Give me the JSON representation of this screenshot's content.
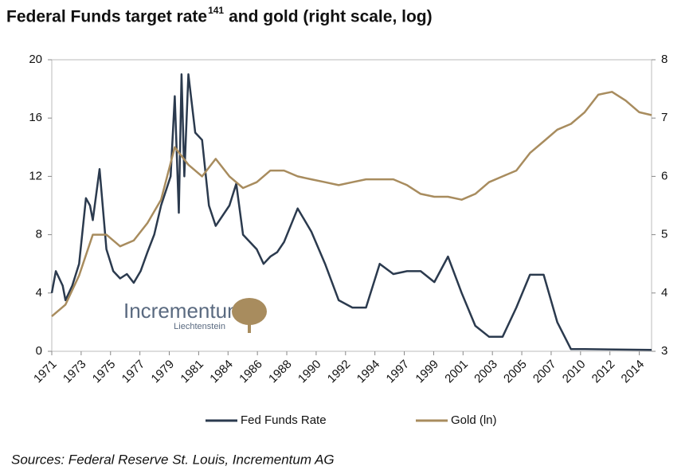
{
  "chart_data": {
    "type": "line",
    "title": "Federal Funds target rate",
    "title_superscript": "141",
    "title_suffix": "and gold (right scale, log)",
    "source": "Sources: Federal Reserve St. Louis, Incrementum AG",
    "logo": {
      "name": "Incrementum",
      "subtitle": "Liechtenstein"
    },
    "xlim": [
      1971,
      2014.9
    ],
    "xticks": [
      1971,
      {
        "value": 1973.15,
        "label": "1973"
      },
      {
        "value": 1975.3,
        "label": "1975"
      },
      {
        "value": 1977.45,
        "label": "1977"
      },
      {
        "value": 1979.6,
        "label": "1979"
      },
      {
        "value": 1981.75,
        "label": "1981"
      },
      {
        "value": 1983.9,
        "label": "1984"
      },
      {
        "value": 1986.05,
        "label": "1986"
      },
      {
        "value": 1988.2,
        "label": "1988"
      },
      {
        "value": 1990.35,
        "label": "1990"
      },
      {
        "value": 1992.5,
        "label": "1992"
      },
      {
        "value": 1994.65,
        "label": "1994"
      },
      {
        "value": 1996.8,
        "label": "1997"
      },
      {
        "value": 1998.95,
        "label": "1999"
      },
      {
        "value": 2001.1,
        "label": "2001"
      },
      {
        "value": 2003.25,
        "label": "2003"
      },
      {
        "value": 2005.4,
        "label": "2005"
      },
      {
        "value": 2007.55,
        "label": "2007"
      },
      {
        "value": 2009.7,
        "label": "2010"
      },
      {
        "value": 2011.85,
        "label": "2012"
      },
      2014
    ],
    "ylim": [
      0,
      20
    ],
    "yticks": [
      0,
      4,
      8,
      12,
      16,
      20
    ],
    "y2lim": [
      3,
      8
    ],
    "y2ticks": [
      3,
      4,
      5,
      6,
      7,
      8
    ],
    "legend": "bottom",
    "series": [
      {
        "name": "Fed Funds Rate",
        "color": "#2b3a4e",
        "x": [
          1971,
          1971.3,
          1971.8,
          1972,
          1972.5,
          1973,
          1973.5,
          1973.8,
          1974,
          1974.5,
          1975,
          1975.5,
          1976,
          1976.5,
          1977,
          1977.5,
          1978,
          1978.5,
          1979,
          1979.7,
          1980,
          1980.3,
          1980.5,
          1980.7,
          1981,
          1981.5,
          1982,
          1982.5,
          1983,
          1984,
          1984.5,
          1985,
          1986,
          1986.5,
          1987,
          1987.5,
          1988,
          1989,
          1989.5,
          1990,
          1991,
          1992,
          1993,
          1994,
          1995,
          1996,
          1997,
          1998,
          1999,
          2000,
          2001,
          2002,
          2003,
          2004,
          2005,
          2006,
          2007,
          2008,
          2009,
          2010,
          2014.9
        ],
        "values": [
          4,
          5.5,
          4.5,
          3.5,
          4.5,
          6,
          10.5,
          10,
          9,
          12.5,
          7,
          5.5,
          5,
          5.3,
          4.7,
          5.5,
          6.8,
          8,
          10,
          12,
          17.5,
          9.5,
          19,
          12,
          19,
          15,
          14.5,
          10,
          8.6,
          10,
          11.5,
          8,
          7,
          6,
          6.5,
          6.8,
          7.5,
          9.8,
          9,
          8.2,
          6,
          3.5,
          3,
          3,
          6,
          5.3,
          5.5,
          5.5,
          4.75,
          6.5,
          4,
          1.75,
          1,
          1,
          3,
          5.25,
          5.25,
          2,
          0.15,
          0.15,
          0.1
        ]
      },
      {
        "name": "Gold (ln)",
        "color": "#a88c5e",
        "axis": "y2",
        "x": [
          1971,
          1972,
          1973,
          1974,
          1975,
          1976,
          1977,
          1978,
          1979,
          1980,
          1981,
          1982,
          1983,
          1984,
          1985,
          1986,
          1987,
          1988,
          1989,
          1990,
          1991,
          1992,
          1993,
          1994,
          1995,
          1996,
          1997,
          1998,
          1999,
          2000,
          2001,
          2002,
          2003,
          2004,
          2005,
          2006,
          2007,
          2008,
          2009,
          2010,
          2011,
          2012,
          2013,
          2014,
          2014.9
        ],
        "values": [
          3.6,
          3.8,
          4.3,
          5.0,
          5.0,
          4.8,
          4.9,
          5.2,
          5.6,
          6.5,
          6.2,
          6.0,
          6.3,
          6.0,
          5.8,
          5.9,
          6.1,
          6.1,
          6.0,
          5.95,
          5.9,
          5.85,
          5.9,
          5.95,
          5.95,
          5.95,
          5.85,
          5.7,
          5.65,
          5.65,
          5.6,
          5.7,
          5.9,
          6.0,
          6.1,
          6.4,
          6.6,
          6.8,
          6.9,
          7.1,
          7.4,
          7.45,
          7.3,
          7.1,
          7.05
        ]
      }
    ]
  }
}
